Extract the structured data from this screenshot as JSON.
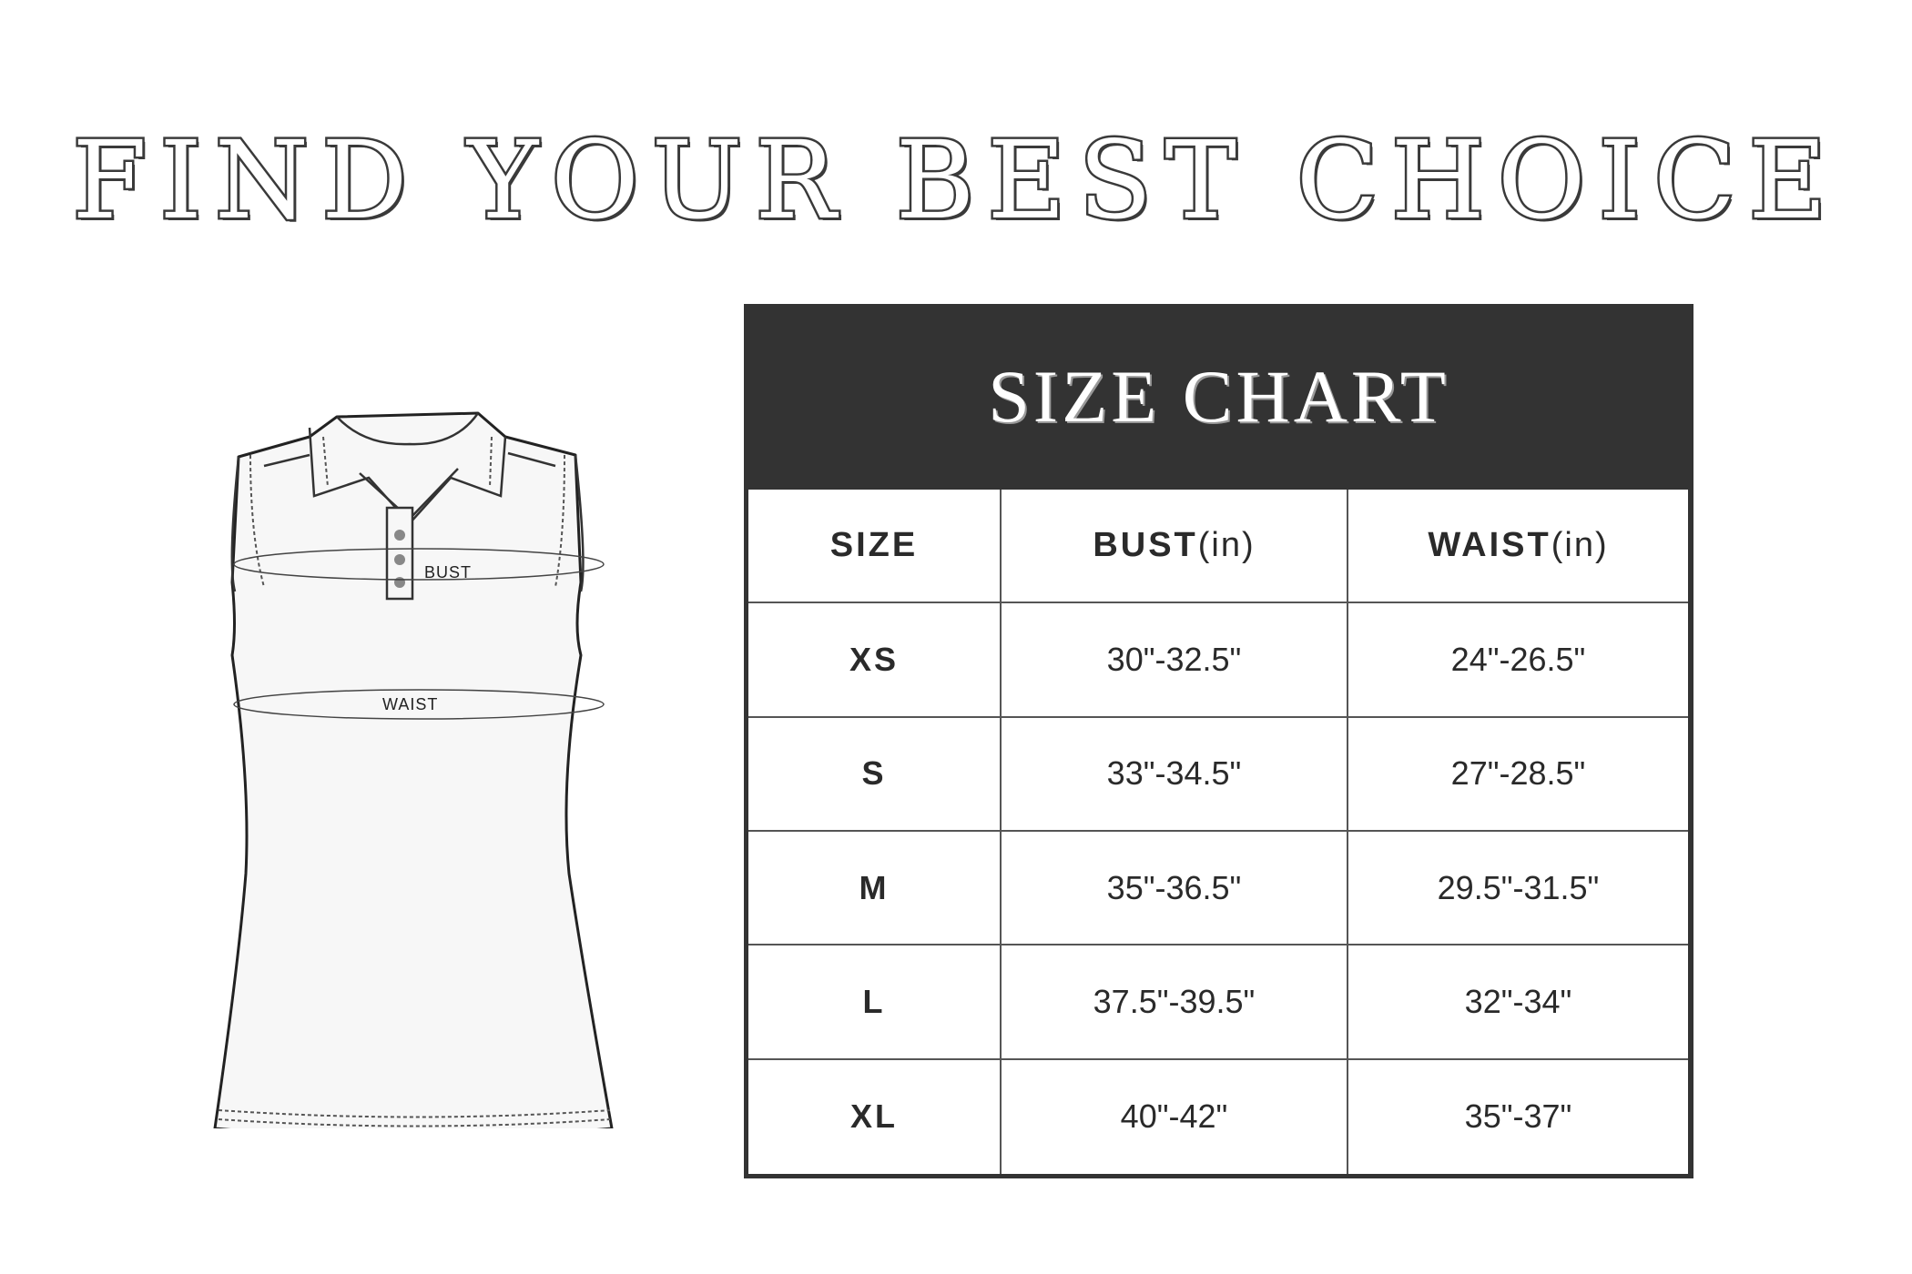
{
  "title": "FIND YOUR BEST CHOICE",
  "diagram": {
    "bust_label": "BUST",
    "waist_label": "WAIST"
  },
  "size_chart": {
    "title": "SIZE CHART",
    "headers": [
      {
        "main": "SIZE",
        "unit": ""
      },
      {
        "main": "BUST",
        "unit": "(in)"
      },
      {
        "main": "WAIST",
        "unit": "(in)"
      }
    ],
    "rows": [
      {
        "size": "XS",
        "bust": "30\"-32.5\"",
        "waist": "24\"-26.5\""
      },
      {
        "size": "S",
        "bust": "33\"-34.5\"",
        "waist": "27\"-28.5\""
      },
      {
        "size": "M",
        "bust": "35\"-36.5\"",
        "waist": "29.5\"-31.5\""
      },
      {
        "size": "L",
        "bust": "37.5\"-39.5\"",
        "waist": "32\"-34\""
      },
      {
        "size": "XL",
        "bust": "40\"-42\"",
        "waist": "35\"-37\""
      }
    ]
  },
  "colors": {
    "header_bg": "#333333",
    "text": "#2a2a2a"
  }
}
